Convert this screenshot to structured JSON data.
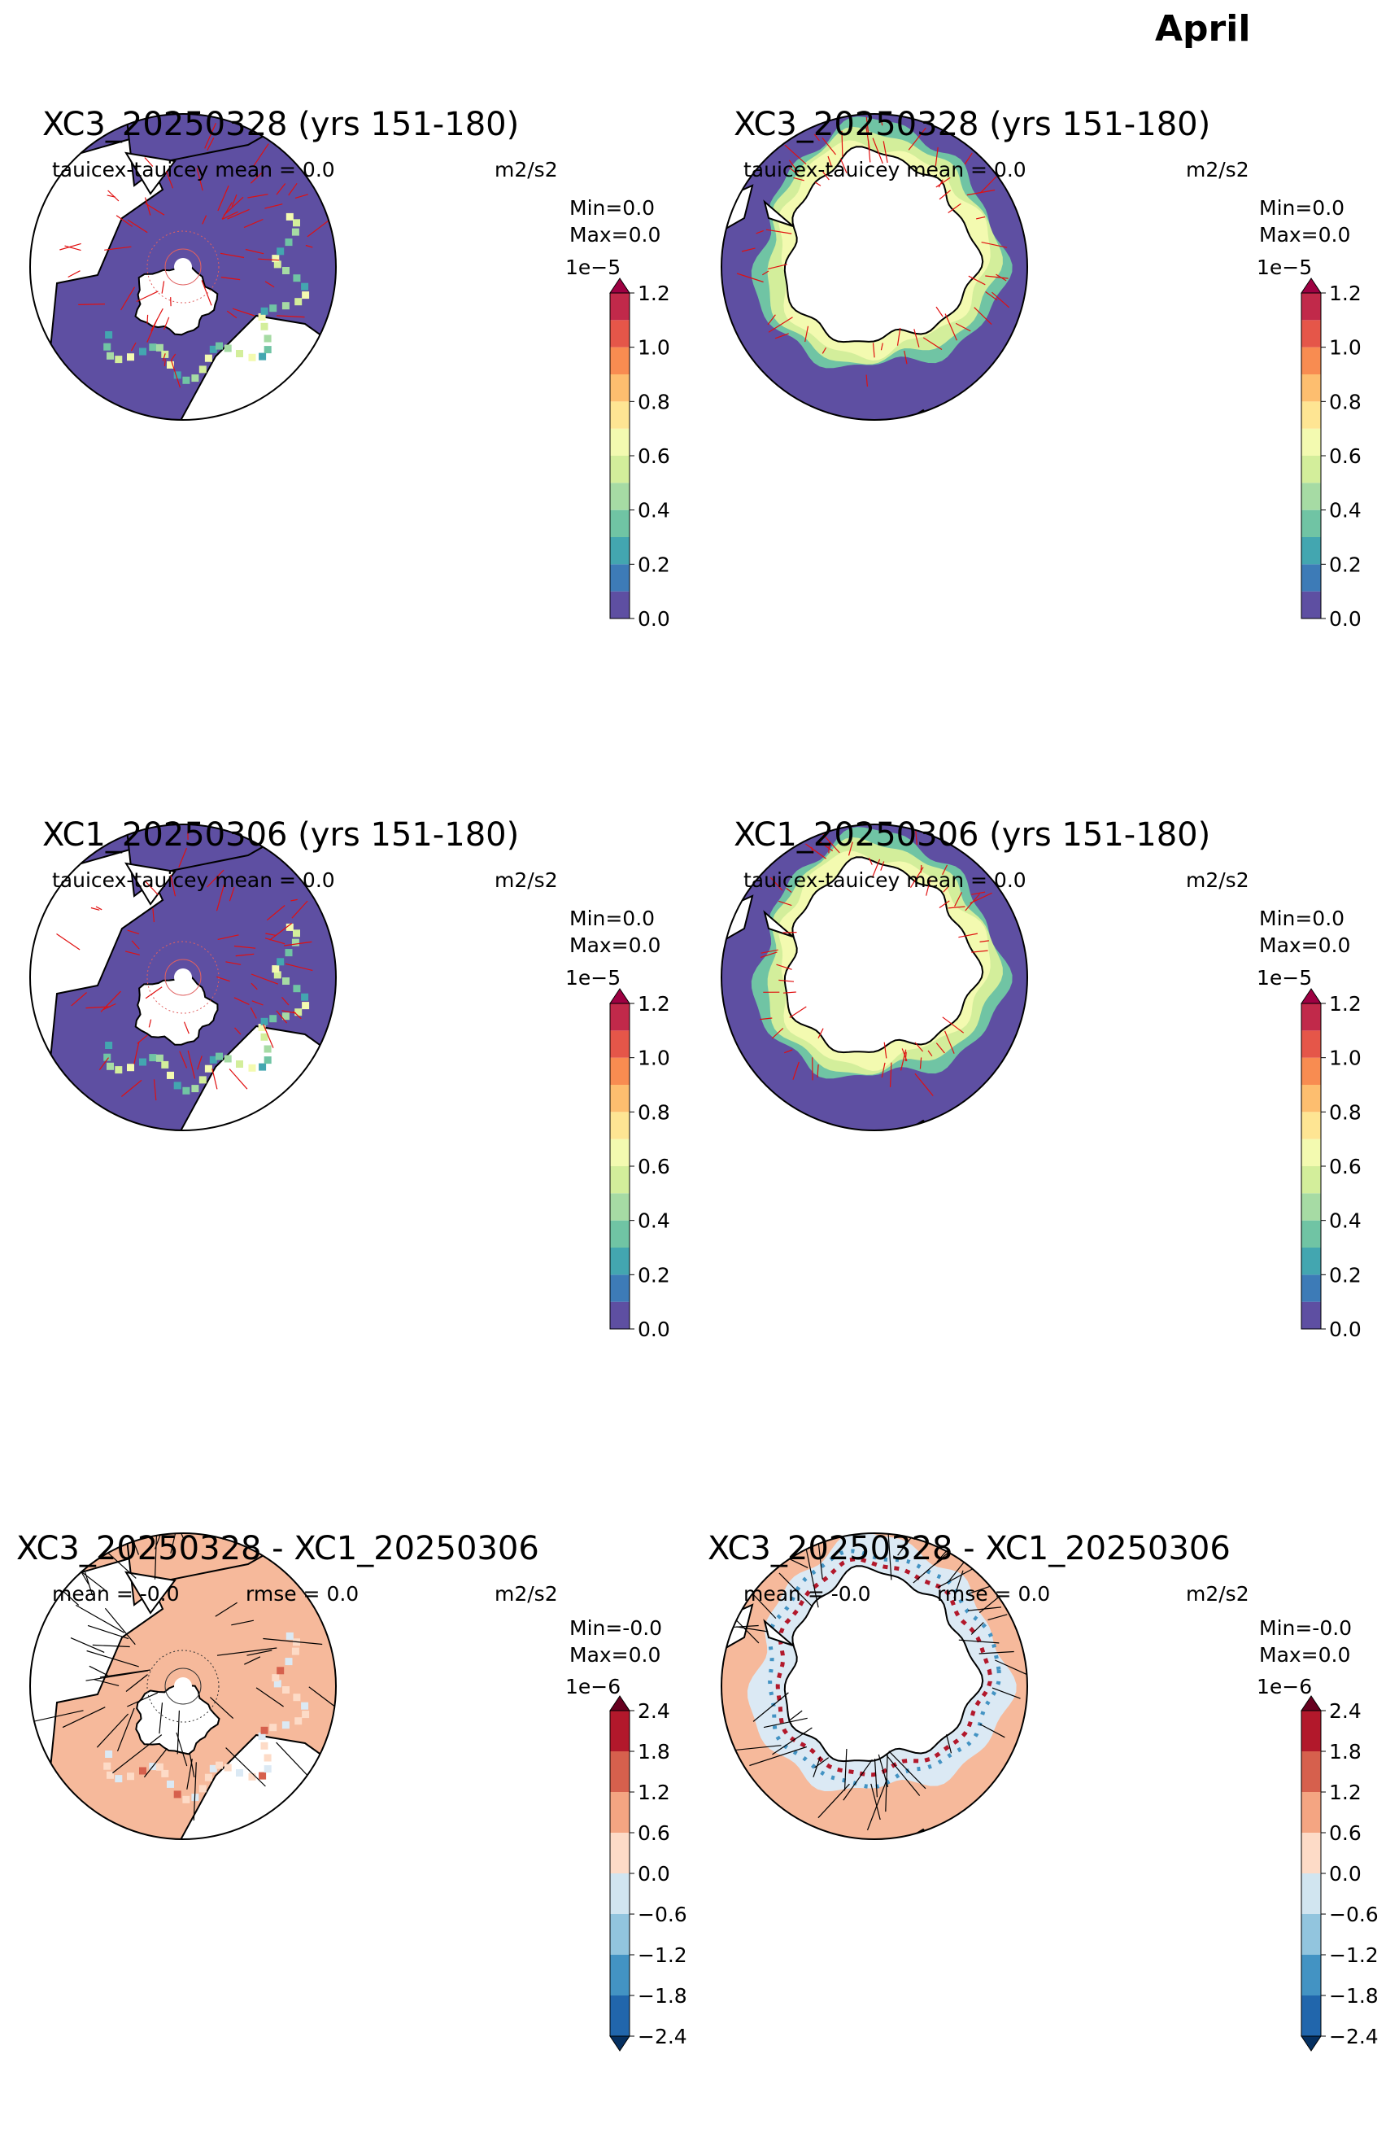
{
  "suptitle": "April",
  "panels": [
    {
      "title": "XC3_20250328 (yrs 151-180)",
      "left_label": "tauicex-tauicey  mean = 0.0",
      "units": "m2/s2",
      "stats": "Min=0.0\n Max=0.0",
      "exponent": "1e−5",
      "hemisphere": "north",
      "colormap": "Spectral_r"
    },
    {
      "title": "XC3_20250328 (yrs 151-180)",
      "left_label": "tauicex-tauicey  mean = 0.0",
      "units": "m2/s2",
      "stats": "Min=0.0\n Max=0.0",
      "exponent": "1e−5",
      "hemisphere": "south",
      "colormap": "Spectral_r"
    },
    {
      "title": "XC1_20250306 (yrs 151-180)",
      "left_label": "tauicex-tauicey  mean = 0.0",
      "units": "m2/s2",
      "stats": "Min=0.0\n Max=0.0",
      "exponent": "1e−5",
      "hemisphere": "north",
      "colormap": "Spectral_r"
    },
    {
      "title": "XC1_20250306 (yrs 151-180)",
      "left_label": "tauicex-tauicey  mean = 0.0",
      "units": "m2/s2",
      "stats": "Min=0.0\n Max=0.0",
      "exponent": "1e−5",
      "hemisphere": "south",
      "colormap": "Spectral_r"
    },
    {
      "title": "XC3_20250328 - XC1_20250306",
      "left_label": "mean = -0.0",
      "middle_label": "rmse = 0.0",
      "units": "m2/s2",
      "stats": "Min=-0.0\nMax=0.0",
      "exponent": "1e−6",
      "hemisphere": "north",
      "colormap": "RdBu_r"
    },
    {
      "title": "XC3_20250328 - XC1_20250306",
      "left_label": "mean = -0.0",
      "middle_label": "rmse = 0.0",
      "units": "m2/s2",
      "stats": "Min=-0.0\nMax=0.0",
      "exponent": "1e−6",
      "hemisphere": "south",
      "colormap": "RdBu_r"
    }
  ],
  "chart_data": [
    {
      "type": "heatmap",
      "title": "XC3_20250328 (yrs 151-180)",
      "projection": "north polar stereographic",
      "field": "tauicex-tauicey",
      "units": "m2/s2",
      "mean": 0.0,
      "min": 0.0,
      "max": 0.0,
      "colorbar": {
        "scale_exponent": "1e-5",
        "levels": [
          0.0,
          0.1,
          0.2,
          0.3,
          0.4,
          0.5,
          0.6,
          0.7,
          0.8,
          0.9,
          1.0,
          1.1,
          1.2
        ],
        "tick_labels": [
          "0.0",
          "0.2",
          "0.4",
          "0.6",
          "0.8",
          "1.0",
          "1.2"
        ],
        "extend": "max",
        "colors": [
          "#5e4fa2",
          "#3d7bb7",
          "#43a6b0",
          "#70c4a4",
          "#a6dba4",
          "#d3ee9b",
          "#f3fab0",
          "#fee593",
          "#fdbe6f",
          "#f88c51",
          "#e55649",
          "#c1294a",
          "#9e0142"
        ]
      },
      "vectors": "red"
    },
    {
      "type": "heatmap",
      "title": "XC3_20250328 (yrs 151-180)",
      "projection": "south polar stereographic",
      "field": "tauicex-tauicey",
      "units": "m2/s2",
      "mean": 0.0,
      "min": 0.0,
      "max": 0.0,
      "colorbar": {
        "scale_exponent": "1e-5",
        "levels": [
          0.0,
          0.1,
          0.2,
          0.3,
          0.4,
          0.5,
          0.6,
          0.7,
          0.8,
          0.9,
          1.0,
          1.1,
          1.2
        ],
        "tick_labels": [
          "0.0",
          "0.2",
          "0.4",
          "0.6",
          "0.8",
          "1.0",
          "1.2"
        ],
        "extend": "max",
        "colors": [
          "#5e4fa2",
          "#3d7bb7",
          "#43a6b0",
          "#70c4a4",
          "#a6dba4",
          "#d3ee9b",
          "#f3fab0",
          "#fee593",
          "#fdbe6f",
          "#f88c51",
          "#e55649",
          "#c1294a",
          "#9e0142"
        ]
      },
      "vectors": "red"
    },
    {
      "type": "heatmap",
      "title": "XC1_20250306 (yrs 151-180)",
      "projection": "north polar stereographic",
      "field": "tauicex-tauicey",
      "units": "m2/s2",
      "mean": 0.0,
      "min": 0.0,
      "max": 0.0,
      "colorbar": {
        "scale_exponent": "1e-5",
        "levels": [
          0.0,
          0.1,
          0.2,
          0.3,
          0.4,
          0.5,
          0.6,
          0.7,
          0.8,
          0.9,
          1.0,
          1.1,
          1.2
        ],
        "tick_labels": [
          "0.0",
          "0.2",
          "0.4",
          "0.6",
          "0.8",
          "1.0",
          "1.2"
        ],
        "extend": "max",
        "colors": [
          "#5e4fa2",
          "#3d7bb7",
          "#43a6b0",
          "#70c4a4",
          "#a6dba4",
          "#d3ee9b",
          "#f3fab0",
          "#fee593",
          "#fdbe6f",
          "#f88c51",
          "#e55649",
          "#c1294a",
          "#9e0142"
        ]
      },
      "vectors": "red"
    },
    {
      "type": "heatmap",
      "title": "XC1_20250306 (yrs 151-180)",
      "projection": "south polar stereographic",
      "field": "tauicex-tauicey",
      "units": "m2/s2",
      "mean": 0.0,
      "min": 0.0,
      "max": 0.0,
      "colorbar": {
        "scale_exponent": "1e-5",
        "levels": [
          0.0,
          0.1,
          0.2,
          0.3,
          0.4,
          0.5,
          0.6,
          0.7,
          0.8,
          0.9,
          1.0,
          1.1,
          1.2
        ],
        "tick_labels": [
          "0.0",
          "0.2",
          "0.4",
          "0.6",
          "0.8",
          "1.0",
          "1.2"
        ],
        "extend": "max",
        "colors": [
          "#5e4fa2",
          "#3d7bb7",
          "#43a6b0",
          "#70c4a4",
          "#a6dba4",
          "#d3ee9b",
          "#f3fab0",
          "#fee593",
          "#fdbe6f",
          "#f88c51",
          "#e55649",
          "#c1294a",
          "#9e0142"
        ]
      },
      "vectors": "red"
    },
    {
      "type": "heatmap",
      "title": "XC3_20250328 - XC1_20250306",
      "projection": "north polar stereographic",
      "units": "m2/s2",
      "mean": -0.0,
      "rmse": 0.0,
      "min": -0.0,
      "max": 0.0,
      "colorbar": {
        "scale_exponent": "1e-6",
        "levels": [
          -2.4,
          -1.8,
          -1.2,
          -0.6,
          0.0,
          0.6,
          1.2,
          1.8,
          2.4
        ],
        "tick_labels": [
          "−2.4",
          "−1.8",
          "−1.2",
          "−0.6",
          "0.0",
          "0.6",
          "1.2",
          "1.8",
          "2.4"
        ],
        "extend": "both",
        "colors": [
          "#2166ac",
          "#4393c3",
          "#92c5de",
          "#d1e5f0",
          "#fddbc7",
          "#f4a582",
          "#d6604d",
          "#b2182b"
        ],
        "under_color": "#053061",
        "over_color": "#67001f"
      },
      "vectors": "black"
    },
    {
      "type": "heatmap",
      "title": "XC3_20250328 - XC1_20250306",
      "projection": "south polar stereographic",
      "units": "m2/s2",
      "mean": -0.0,
      "rmse": 0.0,
      "min": -0.0,
      "max": 0.0,
      "colorbar": {
        "scale_exponent": "1e-6",
        "levels": [
          -2.4,
          -1.8,
          -1.2,
          -0.6,
          0.0,
          0.6,
          1.2,
          1.8,
          2.4
        ],
        "tick_labels": [
          "−2.4",
          "−1.8",
          "−1.2",
          "−0.6",
          "0.0",
          "0.6",
          "1.2",
          "1.8",
          "2.4"
        ],
        "extend": "both",
        "colors": [
          "#2166ac",
          "#4393c3",
          "#92c5de",
          "#d1e5f0",
          "#fddbc7",
          "#f4a582",
          "#d6604d",
          "#b2182b"
        ],
        "under_color": "#053061",
        "over_color": "#67001f"
      },
      "vectors": "black"
    }
  ]
}
